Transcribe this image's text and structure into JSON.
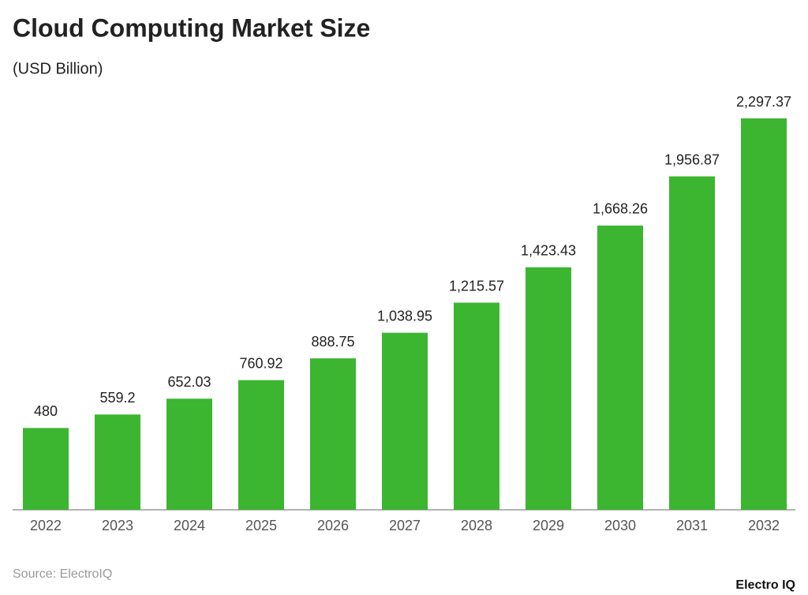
{
  "chart_data": {
    "type": "bar",
    "title": "Cloud Computing Market Size",
    "subtitle": "(USD Billion)",
    "categories": [
      "2022",
      "2023",
      "2024",
      "2025",
      "2026",
      "2027",
      "2028",
      "2029",
      "2030",
      "2031",
      "2032"
    ],
    "values": [
      480,
      559.2,
      652.03,
      760.92,
      888.75,
      1038.95,
      1215.57,
      1423.43,
      1668.26,
      1956.87,
      2297.37
    ],
    "value_labels": [
      "480",
      "559.2",
      "652.03",
      "760.92",
      "888.75",
      "1,038.95",
      "1,215.57",
      "1,423.43",
      "1,668.26",
      "1,956.87",
      "2,297.37"
    ],
    "color": "#3cb531",
    "source": "Source: ElectroIQ",
    "logo": "Electro IQ"
  }
}
